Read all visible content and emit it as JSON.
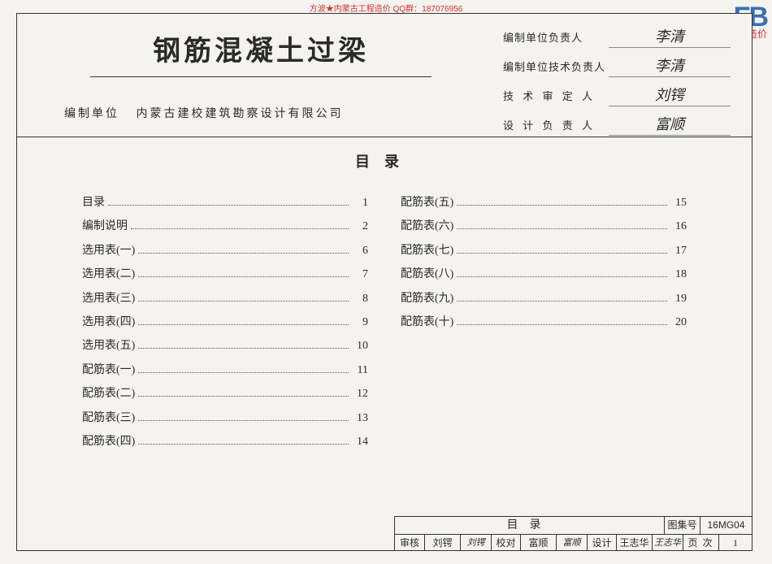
{
  "watermark_top": "方波★内蒙古工程造价 QQ群：187076956",
  "logo": {
    "big": "FB",
    "small": "方波造价"
  },
  "header": {
    "main_title": "钢筋混凝土过梁",
    "compile_label": "编制单位",
    "compile_value": "内蒙古建校建筑勘察设计有限公司",
    "signatures": [
      {
        "label": "编制单位负责人",
        "name": "李清",
        "spacing": "norm"
      },
      {
        "label": "编制单位技术负责人",
        "name": "李清",
        "spacing": "norm"
      },
      {
        "label": "技 术 审 定 人",
        "name": "刘锷",
        "spacing": "mid"
      },
      {
        "label": "设 计 负 责 人",
        "name": "富顺",
        "spacing": "mid"
      }
    ]
  },
  "toc": {
    "title": "目录",
    "left": [
      {
        "name": "目录",
        "page": "1"
      },
      {
        "name": "编制说明",
        "page": "2"
      },
      {
        "name": "选用表(一)",
        "page": "6"
      },
      {
        "name": "选用表(二)",
        "page": "7"
      },
      {
        "name": "选用表(三)",
        "page": "8"
      },
      {
        "name": "选用表(四)",
        "page": "9"
      },
      {
        "name": "选用表(五)",
        "page": "10"
      },
      {
        "name": "配筋表(一)",
        "page": "11"
      },
      {
        "name": "配筋表(二)",
        "page": "12"
      },
      {
        "name": "配筋表(三)",
        "page": "13"
      },
      {
        "name": "配筋表(四)",
        "page": "14"
      }
    ],
    "right": [
      {
        "name": "配筋表(五)",
        "page": "15"
      },
      {
        "name": "配筋表(六)",
        "page": "16"
      },
      {
        "name": "配筋表(七)",
        "page": "17"
      },
      {
        "name": "配筋表(八)",
        "page": "18"
      },
      {
        "name": "配筋表(九)",
        "page": "19"
      },
      {
        "name": "配筋表(十)",
        "page": "20"
      }
    ]
  },
  "footer": {
    "title": "目录",
    "code_label": "图集号",
    "code_value": "16MG04",
    "cells": {
      "review_lbl": "审核",
      "review_name": "刘锷",
      "review_sig": "刘锷",
      "check_lbl": "校对",
      "check_name": "富顺",
      "check_sig": "富顺",
      "design_lbl": "设计",
      "design_name": "王志华",
      "design_sig": "王志华",
      "page_lbl": "页次",
      "page_val": "1"
    }
  }
}
